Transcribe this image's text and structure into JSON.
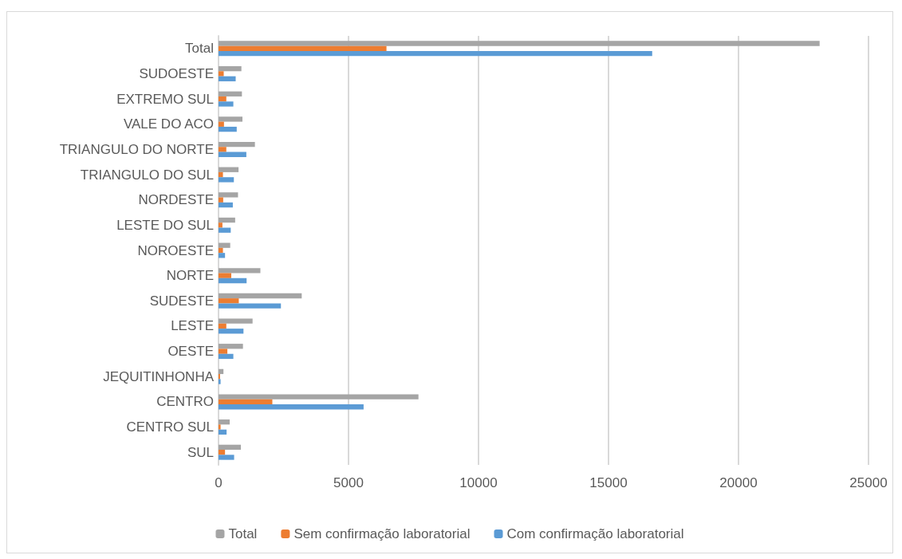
{
  "chart_data": {
    "type": "bar",
    "orientation": "horizontal",
    "categories": [
      "Total",
      "SUDOESTE",
      "EXTREMO SUL",
      "VALE DO ACO",
      "TRIANGULO DO NORTE",
      "TRIANGULO DO SUL",
      "NORDESTE",
      "LESTE DO SUL",
      "NOROESTE",
      "NORTE",
      "SUDESTE",
      "LESTE",
      "OESTE",
      "JEQUITINHONHA",
      "CENTRO",
      "CENTRO SUL",
      "SUL"
    ],
    "series": [
      {
        "name": "Total",
        "color": "#a5a5a5",
        "values": [
          23120,
          880,
          900,
          920,
          1400,
          770,
          750,
          640,
          450,
          1610,
          3200,
          1310,
          940,
          190,
          7690,
          430,
          860
        ]
      },
      {
        "name": "Sem confirmação laboratorial",
        "color": "#ed7d31",
        "values": [
          6460,
          200,
          300,
          210,
          300,
          170,
          180,
          150,
          170,
          490,
          780,
          300,
          340,
          60,
          2070,
          80,
          250
        ]
      },
      {
        "name": "Com confirmação laboratorial",
        "color": "#5b9bd5",
        "values": [
          16680,
          660,
          570,
          700,
          1070,
          590,
          550,
          470,
          250,
          1080,
          2400,
          960,
          570,
          80,
          5580,
          310,
          600
        ]
      }
    ],
    "xlim": [
      0,
      25000
    ],
    "xticks": [
      0,
      5000,
      10000,
      15000,
      20000,
      25000
    ],
    "grid": "x",
    "legend": "bottom"
  }
}
